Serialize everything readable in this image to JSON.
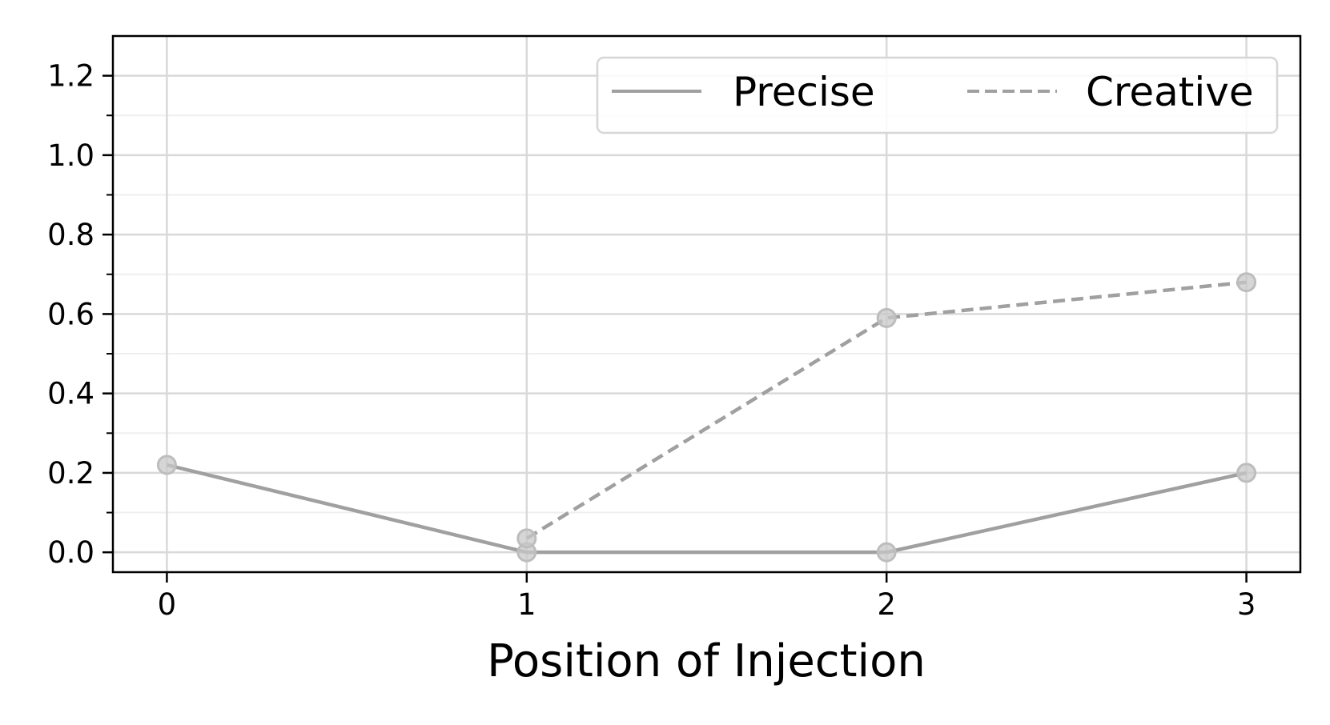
{
  "chart_data": {
    "type": "line",
    "title": "",
    "xlabel": "Position of Injection",
    "ylabel": "",
    "x": [
      0,
      1,
      2,
      3
    ],
    "xticks": [
      "0",
      "1",
      "2",
      "3"
    ],
    "yticks": [
      "0.0",
      "0.2",
      "0.4",
      "0.6",
      "0.8",
      "1.0",
      "1.2"
    ],
    "ylim": [
      -0.05,
      1.3
    ],
    "xlim": [
      -0.15,
      3.15
    ],
    "grid": true,
    "legend_position": "top-right",
    "series": [
      {
        "name": "Precise",
        "x": [
          0,
          1,
          2,
          3
        ],
        "values": [
          0.22,
          0.0,
          0.0,
          0.2
        ],
        "style": "solid",
        "color": "#a0a0a0"
      },
      {
        "name": "Creative",
        "x": [
          1,
          2,
          3
        ],
        "values": [
          0.035,
          0.59,
          0.68
        ],
        "style": "dashed",
        "color": "#a0a0a0"
      }
    ]
  }
}
